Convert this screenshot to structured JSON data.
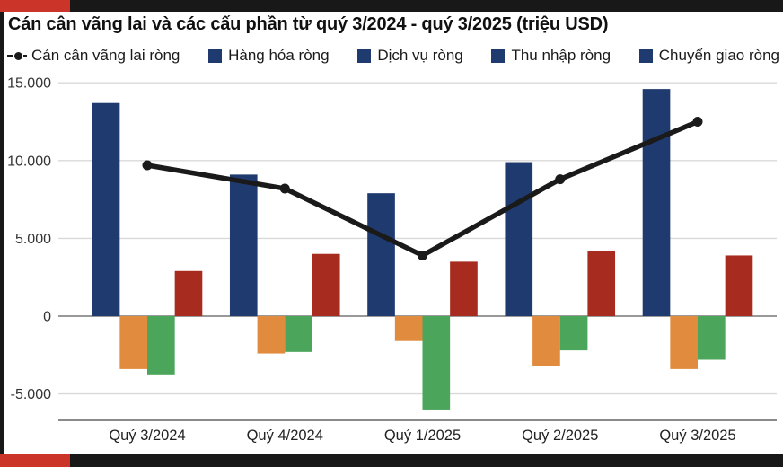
{
  "title": "Cán cân vãng lai và các cấu phần từ quý 3/2024 - quý 3/2025 (triệu USD)",
  "frame": {
    "bar_color": "#181818",
    "accent_color": "#cb3428"
  },
  "legend": [
    {
      "label": "Cán cân vãng lai ròng",
      "marker": "line-dot",
      "color": "#1a1a1a"
    },
    {
      "label": "Hàng hóa ròng",
      "marker": "square",
      "color": "#1e3a6e"
    },
    {
      "label": "Dịch vụ ròng",
      "marker": "square",
      "color": "#1e3a6e"
    },
    {
      "label": "Thu nhập ròng",
      "marker": "square",
      "color": "#1e3a6e"
    },
    {
      "label": "Chuyển giao ròng",
      "marker": "square",
      "color": "#1e3a6e"
    }
  ],
  "chart_data": {
    "type": "bar+line",
    "title": "Cán cân vãng lai và các cấu phần từ quý 3/2024 - quý 3/2025 (triệu USD)",
    "unit": "triệu USD",
    "categories": [
      "Quý 3/2024",
      "Quý 4/2024",
      "Quý 1/2025",
      "Quý 2/2025",
      "Quý 3/2025"
    ],
    "series": [
      {
        "name": "Hàng hóa ròng",
        "type": "bar",
        "color": "#1e3a6e",
        "values": [
          13700,
          9100,
          7900,
          9900,
          14600
        ]
      },
      {
        "name": "Dịch vụ ròng",
        "type": "bar",
        "color": "#e08b3d",
        "values": [
          -3400,
          -2400,
          -1600,
          -3200,
          -3400
        ]
      },
      {
        "name": "Thu nhập ròng",
        "type": "bar",
        "color": "#4ba55b",
        "values": [
          -3800,
          -2300,
          -6000,
          -2200,
          -2800
        ]
      },
      {
        "name": "Chuyển giao ròng",
        "type": "bar",
        "color": "#a82b20",
        "values": [
          2900,
          4000,
          3500,
          4200,
          3900
        ]
      },
      {
        "name": "Cán cân vãng lai ròng",
        "type": "line",
        "color": "#1a1a1a",
        "values": [
          9700,
          8200,
          3900,
          8800,
          12500
        ]
      }
    ],
    "y_ticks": [
      "15.000",
      "10.000",
      "5.000",
      "0",
      "-5.000"
    ],
    "y_tick_values": [
      15000,
      10000,
      5000,
      0,
      -5000
    ],
    "ylim": [
      -6700,
      15700
    ],
    "grid": true,
    "legend_position": "top",
    "grid_color": "#d9d9d9",
    "zero_line_color": "#999999",
    "axis_line_color": "#8a8a8a"
  }
}
